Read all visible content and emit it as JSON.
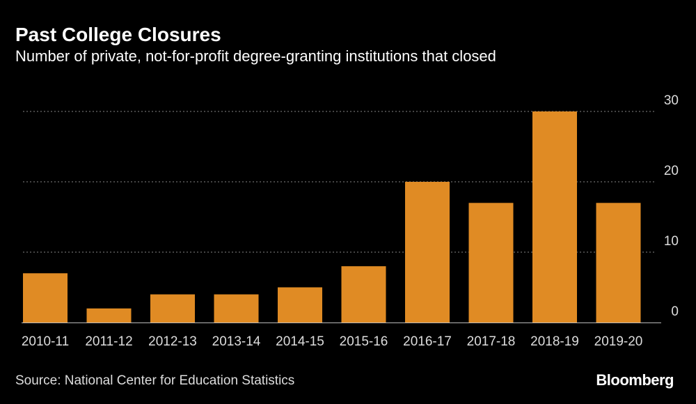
{
  "chart_data": {
    "type": "bar",
    "title": "Past College Closures",
    "subtitle": "Number of private, not-for-profit degree-granting institutions that closed",
    "categories": [
      "2010-11",
      "2011-12",
      "2012-13",
      "2013-14",
      "2014-15",
      "2015-16",
      "2016-17",
      "2017-18",
      "2018-19",
      "2019-20"
    ],
    "values": [
      7,
      2,
      4,
      4,
      5,
      8,
      20,
      17,
      30,
      17
    ],
    "ylim": [
      0,
      30
    ],
    "yticks": [
      0,
      10,
      20,
      30
    ],
    "grid": true,
    "xlabel": "",
    "ylabel": "",
    "bar_color": "#e08b24"
  },
  "footer": {
    "source": "Source: National Center for Education Statistics",
    "logo": "Bloomberg"
  }
}
